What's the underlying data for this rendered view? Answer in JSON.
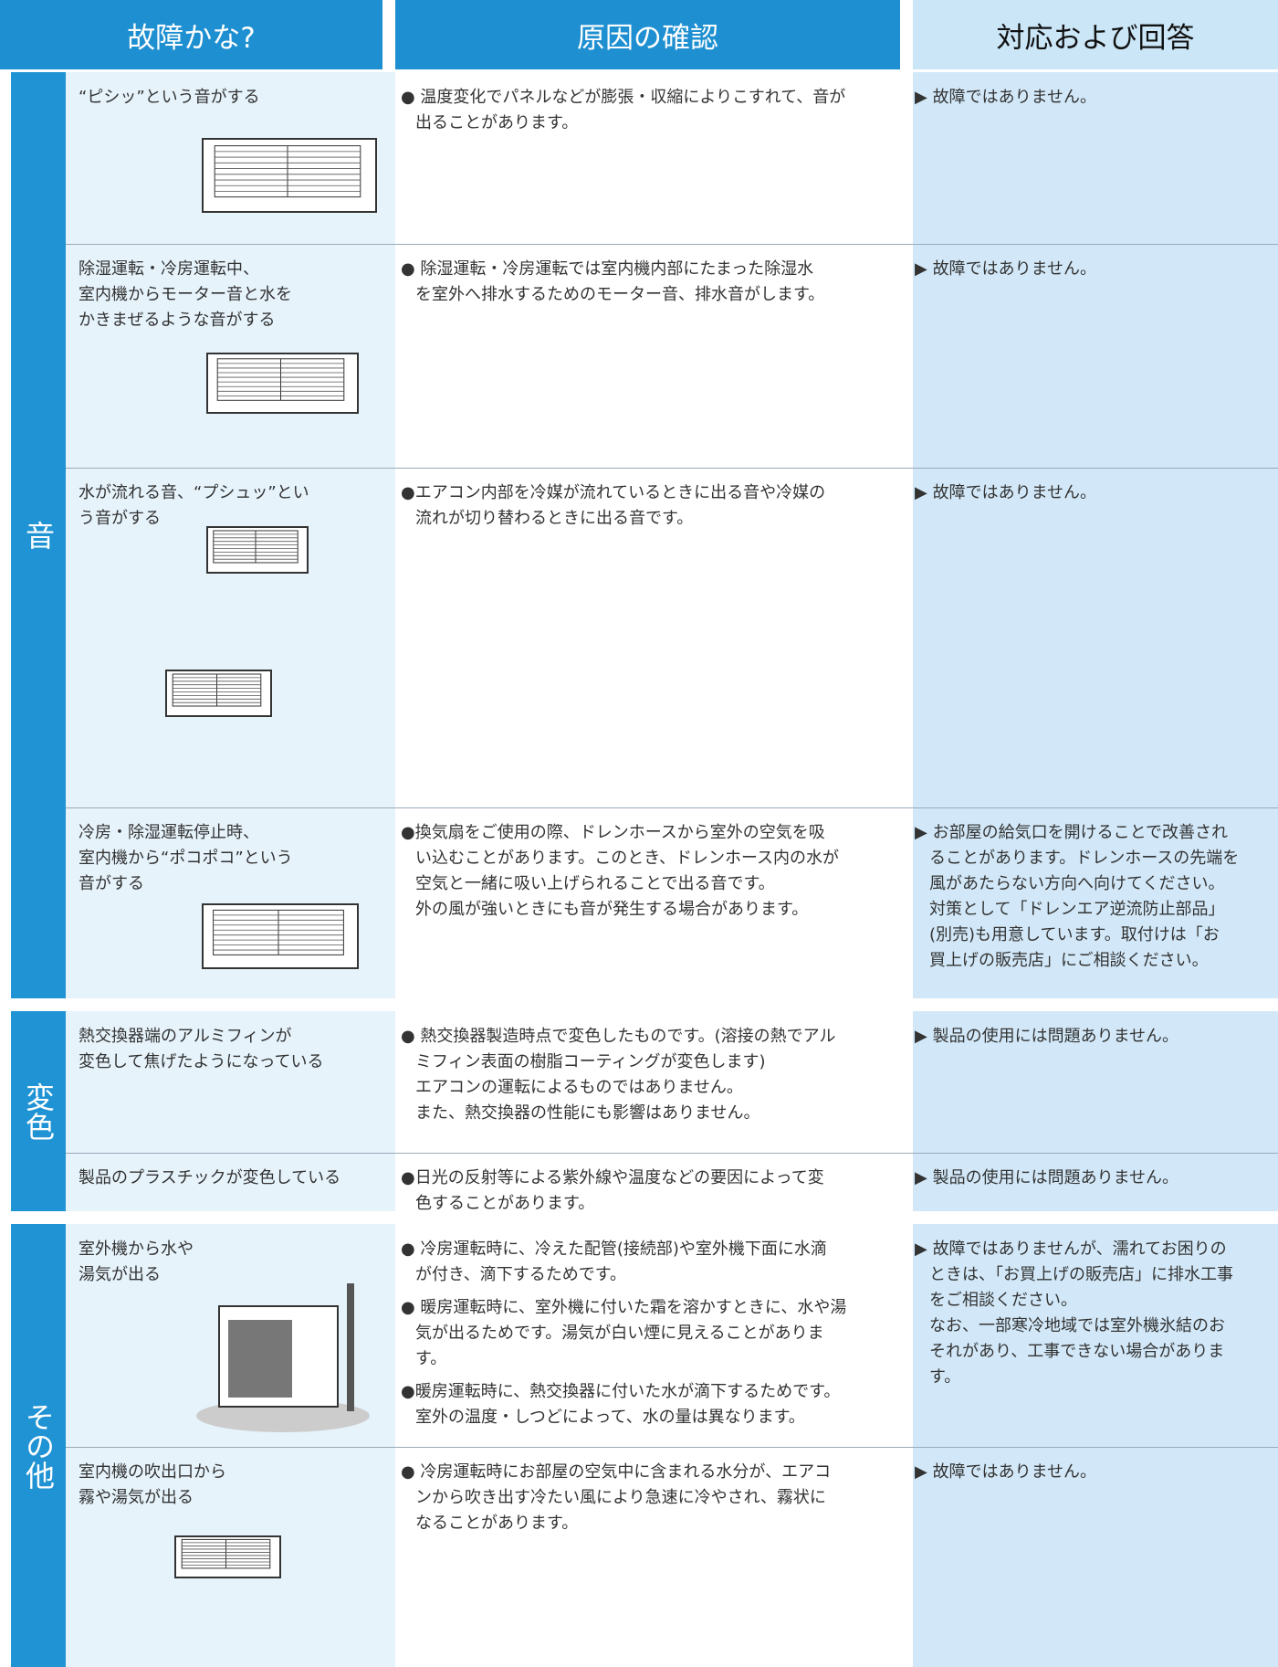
{
  "header": {
    "symptom": "故障かな?",
    "cause": "原因の確認",
    "answer": "対応および回答"
  },
  "sections": [
    {
      "label": "音",
      "rows": [
        {
          "symptom": [
            "“ピシッ”という音がする"
          ],
          "causes": [
            [
              "● 温度変化でパネルなどが膨張・収縮によりこすれて、音が",
              "出ることがあります。"
            ]
          ],
          "answer": [
            "▶ 故障ではありません。"
          ]
        },
        {
          "symptom": [
            "除湿運転・冷房運転中、",
            "室内機からモーター音と水を",
            "かきまぜるような音がする"
          ],
          "causes": [
            [
              "● 除湿運転・冷房運転では室内機内部にたまった除湿水",
              "を室外へ排水するためのモーター音、排水音がします。"
            ]
          ],
          "answer": [
            "▶ 故障ではありません。"
          ]
        },
        {
          "symptom": [
            "水が流れる音、“プシュッ”とい",
            "う音がする"
          ],
          "causes": [
            [
              "●エアコン内部を冷媒が流れているときに出る音や冷媒の",
              "流れが切り替わるときに出る音です。"
            ]
          ],
          "answer": [
            "▶ 故障ではありません。"
          ]
        },
        {
          "symptom": [
            "冷房・除湿運転停止時、",
            "室内機から“ポコポコ”という",
            "音がする"
          ],
          "causes": [
            [
              "●換気扇をご使用の際、ドレンホースから室外の空気を吸",
              "い込むことがあります。このとき、ドレンホース内の水が",
              "空気と一緒に吸い上げられることで出る音です。",
              "外の風が強いときにも音が発生する場合があります。"
            ]
          ],
          "answer": [
            "▶ お部屋の給気口を開けることで改善され",
            "ることがあります。ドレンホースの先端を",
            "風があたらない方向へ向けてください。",
            "対策として「ドレンエア逆流防止部品」",
            "(別売)も用意しています。取付けは「お",
            "買上げの販売店」にご相談ください。"
          ]
        }
      ]
    },
    {
      "label": "変色",
      "rows": [
        {
          "symptom": [
            "熱交換器端のアルミフィンが",
            "変色して焦げたようになっている"
          ],
          "causes": [
            [
              "● 熱交換器製造時点で変色したものです。(溶接の熱でアル",
              "ミフィン表面の樹脂コーティングが変色します)",
              "エアコンの運転によるものではありません。",
              "また、熱交換器の性能にも影響はありません。"
            ]
          ],
          "answer": [
            "▶ 製品の使用には問題ありません。"
          ]
        },
        {
          "symptom": [
            "製品のプラスチックが変色している"
          ],
          "causes": [
            [
              "●日光の反射等による紫外線や温度などの要因によって変",
              "色することがあります。"
            ]
          ],
          "answer": [
            "▶ 製品の使用には問題ありません。"
          ]
        }
      ]
    },
    {
      "label": "その他",
      "rows": [
        {
          "symptom": [
            "室外機から水や",
            "湯気が出る"
          ],
          "causes": [
            [
              "● 冷房運転時に、冷えた配管(接続部)や室外機下面に水滴",
              "が付き、滴下するためです。"
            ],
            [
              "● 暖房運転時に、室外機に付いた霜を溶かすときに、水や湯",
              "気が出るためです。湯気が白い煙に見えることがありま",
              "す。"
            ],
            [
              "●暖房運転時に、熱交換器に付いた水が滴下するためです。",
              "室外の温度・しつどによって、水の量は異なります。"
            ]
          ],
          "answer": [
            "▶ 故障ではありませんが、濡れてお困りの",
            "ときは、「お買上げの販売店」に排水工事",
            "をご相談ください。",
            "なお、一部寒冷地域では室外機氷結のお",
            "それがあり、工事できない場合がありま",
            "す。"
          ]
        },
        {
          "symptom": [
            "室内機の吹出口から",
            "霧や湯気が出る"
          ],
          "causes": [
            [
              "● 冷房運転時にお部屋の空気中に含まれる水分が、エアコ",
              "ンから吹き出す冷たい風により急速に冷やされ、霧状に",
              "なることがあります。"
            ]
          ],
          "answer": [
            "▶ 故障ではありません。"
          ]
        }
      ]
    }
  ]
}
